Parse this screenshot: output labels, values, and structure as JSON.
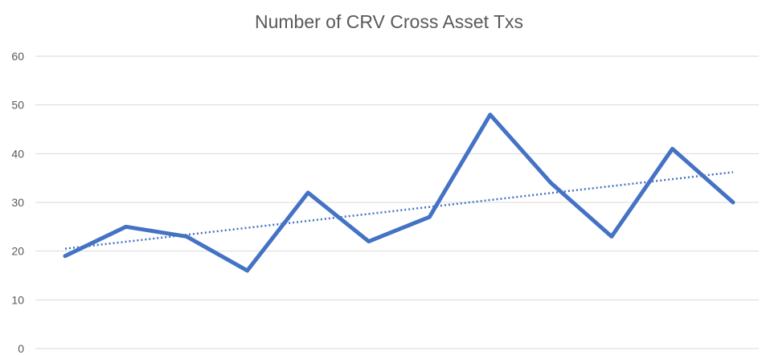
{
  "chart_data": {
    "type": "line",
    "title": "Number of CRV Cross Asset Txs",
    "xlabel": "",
    "ylabel": "",
    "ylim": [
      0,
      60
    ],
    "yticks": [
      "0",
      "10",
      "20",
      "30",
      "40",
      "50",
      "60"
    ],
    "grid": true,
    "legend": "none",
    "x": [
      1,
      2,
      3,
      4,
      5,
      6,
      7,
      8,
      9,
      10,
      11,
      12
    ],
    "series": [
      {
        "values": [
          19,
          25,
          23,
          16,
          32,
          22,
          27,
          48,
          34,
          23,
          41,
          30
        ],
        "color": "#4472C4"
      }
    ],
    "trendline": {
      "style": "dotted",
      "start": 20.5,
      "end": 36.2,
      "color": "#4472C4"
    }
  }
}
